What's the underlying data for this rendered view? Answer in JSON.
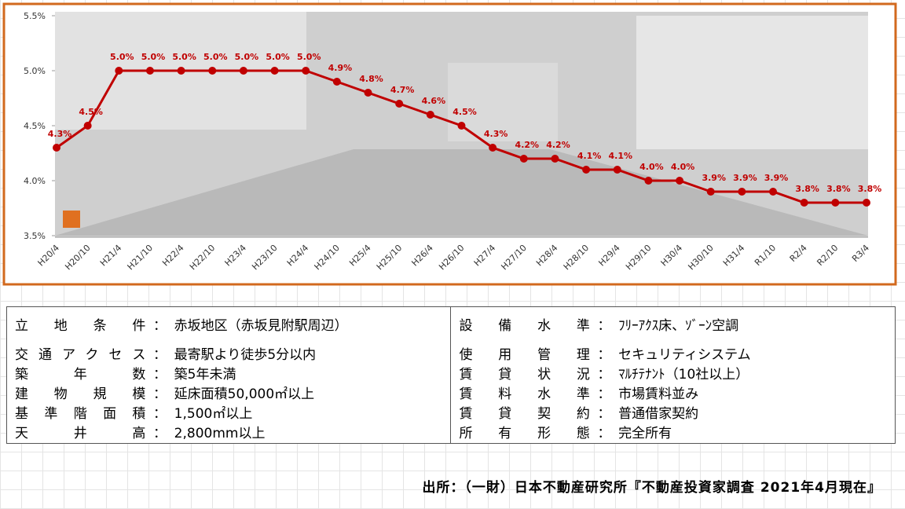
{
  "chart_data": {
    "type": "line",
    "categories": [
      "H20/4",
      "H20/10",
      "H21/4",
      "H21/10",
      "H22/4",
      "H22/10",
      "H23/4",
      "H23/10",
      "H24/4",
      "H24/10",
      "H25/4",
      "H25/10",
      "H26/4",
      "H26/10",
      "H27/4",
      "H27/10",
      "H28/4",
      "H28/10",
      "H29/4",
      "H29/10",
      "H30/4",
      "H30/10",
      "H31/4",
      "R1/10",
      "R2/4",
      "R2/10",
      "R3/4"
    ],
    "values": [
      4.3,
      4.5,
      5.0,
      5.0,
      5.0,
      5.0,
      5.0,
      5.0,
      5.0,
      4.9,
      4.8,
      4.7,
      4.6,
      4.5,
      4.3,
      4.2,
      4.2,
      4.1,
      4.1,
      4.0,
      4.0,
      3.9,
      3.9,
      3.9,
      3.8,
      3.8,
      3.8
    ],
    "value_labels": [
      "4.3%",
      "4.5%",
      "5.0%",
      "5.0%",
      "5.0%",
      "5.0%",
      "5.0%",
      "5.0%",
      "5.0%",
      "4.9%",
      "4.8%",
      "4.7%",
      "4.6%",
      "4.5%",
      "4.3%",
      "4.2%",
      "4.2%",
      "4.1%",
      "4.1%",
      "4.0%",
      "4.0%",
      "3.9%",
      "3.9%",
      "3.9%",
      "3.8%",
      "3.8%",
      "3.8%"
    ],
    "color": "#c00000",
    "ylim": [
      3.5,
      5.5
    ],
    "yticks": [
      {
        "value": 3.5,
        "label": "3.5%"
      },
      {
        "value": 4.0,
        "label": "4.0%"
      },
      {
        "value": 4.5,
        "label": "4.5%"
      },
      {
        "value": 5.0,
        "label": "5.0%"
      },
      {
        "value": 5.5,
        "label": "5.5%"
      }
    ]
  },
  "table": {
    "separator": "：",
    "rows": [
      [
        "立地条件",
        "赤坂地区（赤坂見附駅周辺）",
        "設備水準",
        "ﾌﾘｰｱｸｽ床、ｿﾞｰﾝ空調"
      ],
      [
        "交通アクセス",
        "最寄駅より徒歩5分以内",
        "使用管理",
        "セキュリティシステム"
      ],
      [
        "築年数",
        "築5年未満",
        "賃貸状況",
        "ﾏﾙﾁﾃﾅﾝﾄ（10社以上）"
      ],
      [
        "建物規模",
        "延床面積50,000㎡以上",
        "賃料水準",
        "市場賃料並み"
      ],
      [
        "基準階面積",
        "1,500㎡以上",
        "賃貸契約",
        "普通借家契約"
      ],
      [
        "天井高",
        "2,800mm以上",
        "所有形態",
        "完全所有"
      ]
    ]
  },
  "source": "出所：（一財）日本不動産研究所『不動産投資家調査 2021年4月現在』"
}
